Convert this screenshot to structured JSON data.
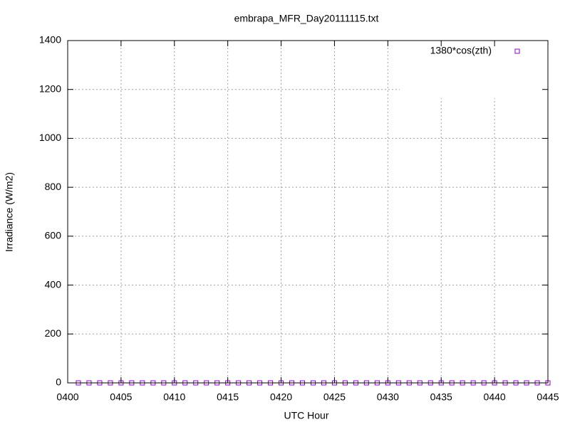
{
  "chart_data": {
    "type": "scatter",
    "title": "embrapa_MFR_Day20111115.txt",
    "xlabel": "UTC Hour",
    "ylabel": "Irradiance (W/m2)",
    "legend": "top-right",
    "grid": true,
    "xlim": [
      400,
      445
    ],
    "ylim": [
      0,
      1400
    ],
    "xticks": [
      {
        "value": 400,
        "label": "0400"
      },
      {
        "value": 405,
        "label": "0405"
      },
      {
        "value": 410,
        "label": "0410"
      },
      {
        "value": 415,
        "label": "0415"
      },
      {
        "value": 420,
        "label": "0420"
      },
      {
        "value": 425,
        "label": "0425"
      },
      {
        "value": 430,
        "label": "0430"
      },
      {
        "value": 435,
        "label": "0435"
      },
      {
        "value": 440,
        "label": "0440"
      },
      {
        "value": 445,
        "label": "0445"
      }
    ],
    "yticks": [
      0,
      200,
      400,
      600,
      800,
      1000,
      1200,
      1400
    ],
    "series": [
      {
        "name": "1380*cos(zth)",
        "color": "#9400d3",
        "x": [
          401,
          402,
          403,
          404,
          405,
          406,
          407,
          408,
          409,
          410,
          411,
          412,
          413,
          414,
          415,
          416,
          417,
          418,
          419,
          420,
          421,
          422,
          423,
          424,
          425,
          426,
          427,
          428,
          429,
          430,
          431,
          432,
          433,
          434,
          435,
          436,
          437,
          438,
          439,
          440,
          441,
          442,
          443,
          444,
          445
        ],
        "values": [
          0,
          0,
          0,
          0,
          0,
          0,
          0,
          0,
          0,
          0,
          0,
          0,
          0,
          0,
          0,
          0,
          0,
          0,
          0,
          0,
          0,
          0,
          0,
          0,
          0,
          0,
          0,
          0,
          0,
          0,
          0,
          0,
          0,
          0,
          0,
          0,
          0,
          0,
          0,
          0,
          0,
          0,
          0,
          0,
          0
        ]
      }
    ]
  }
}
